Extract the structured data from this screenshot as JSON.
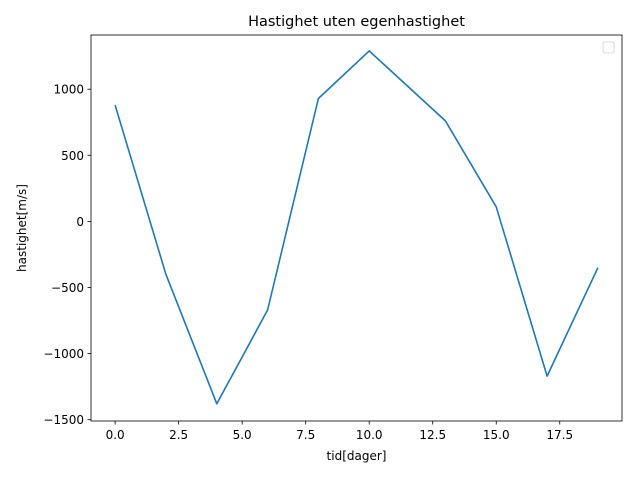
{
  "chart_data": {
    "type": "line",
    "title": "Hastighet uten egenhastighet",
    "xlabel": "tid[dager]",
    "ylabel": "hastighet[m/s]",
    "xlim": [
      -0.95,
      19.95
    ],
    "ylim": [
      -1510,
      1410
    ],
    "xticks": [
      0.0,
      2.5,
      5.0,
      7.5,
      10.0,
      12.5,
      15.0,
      17.5
    ],
    "xtick_labels": [
      "0.0",
      "2.5",
      "5.0",
      "7.5",
      "10.0",
      "12.5",
      "15.0",
      "17.5"
    ],
    "yticks": [
      -1500,
      -1000,
      -500,
      0,
      500,
      1000
    ],
    "ytick_labels": [
      "−1500",
      "−1000",
      "−500",
      "0",
      "500",
      "1000"
    ],
    "grid": false,
    "legend": {
      "position": "top-right",
      "entries": []
    },
    "series": [
      {
        "color": "#1f77b4",
        "x": [
          0,
          2,
          4,
          6,
          8,
          10,
          13,
          15,
          17,
          19
        ],
        "y": [
          880,
          -400,
          -1380,
          -670,
          930,
          1290,
          760,
          110,
          -1170,
          -350
        ]
      }
    ]
  }
}
